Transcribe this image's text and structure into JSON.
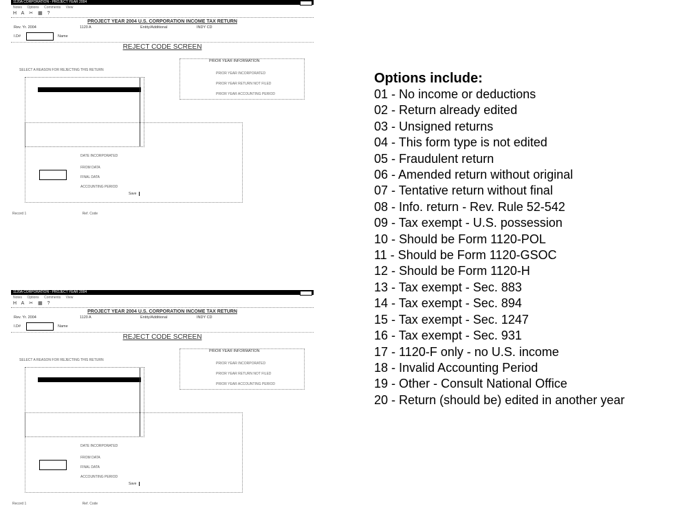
{
  "window": {
    "title": "1120A CORPORATION - PROJECT YEAR 2004",
    "menu": [
      "Notes",
      "Options",
      "Comments",
      "View"
    ],
    "toolbar_icons": [
      "save-icon",
      "find-icon",
      "cut-icon",
      "print-icon",
      "help-icon"
    ],
    "toolbar_glyphs": [
      "H",
      "A",
      "✂",
      "▦",
      "?"
    ]
  },
  "form": {
    "title": "PROJECT YEAR 2004 U.S. CORPORATION INCOME TAX RETURN",
    "rev_yr": "Rev. Yr. 2004",
    "form_type": "1120 A",
    "entity": "Entity/Additional",
    "indy": "INDY CD",
    "id_label": "I.D#",
    "name_label": "Name",
    "screen_title": "REJECT CODE SCREEN",
    "select_label": "SELECT A REASON FOR REJECTING THIS RETURN",
    "prior_header": "PRIOR YEAR INFORMATION",
    "prior_items": [
      "PRIOR YEAR INCORPORATED",
      "PRIOR YEAR RETURN NOT FILED",
      "PRIOR YEAR ACCOUNTING PERIOD"
    ],
    "lower_items": [
      "DATE INCORPORATED",
      "FROM DATA",
      "FINAL DATA",
      "ACCOUNTING PERIOD"
    ],
    "save": "Save",
    "status": [
      "Record 1",
      "Ref. Code"
    ]
  },
  "options": {
    "heading": "Options include:",
    "items": [
      "01 - No income or deductions",
      "02 - Return already edited",
      "03 - Unsigned returns",
      "04 - This form type is not edited",
      "05 - Fraudulent return",
      "06 - Amended return without original",
      "07 - Tentative return without final",
      "08 - Info. return - Rev. Rule 52-542",
      "09 - Tax exempt - U.S. possession",
      "10 - Should be Form 1120-POL",
      "11 - Should be Form 1120-GSOC",
      "12 - Should be Form 1120-H",
      "13 - Tax exempt - Sec. 883",
      "14 - Tax exempt - Sec. 894",
      "15 - Tax exempt - Sec. 1247",
      "16 - Tax exempt - Sec. 931",
      "17 - 1120-F only - no U.S. income",
      "18 - Invalid Accounting Period",
      "19 - Other - Consult National Office",
      "20 - Return (should be) edited in another year"
    ]
  }
}
